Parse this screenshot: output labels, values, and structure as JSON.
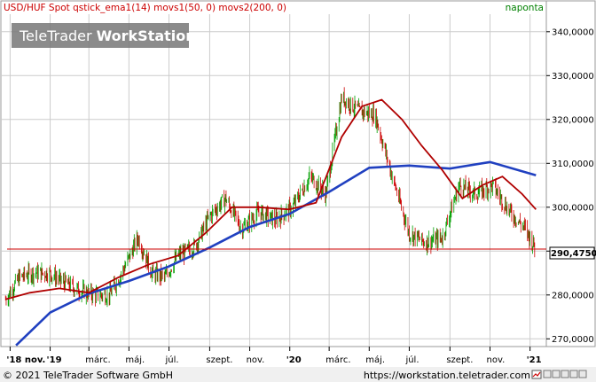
{
  "legend": {
    "series_text": "USD/HUF Spot qstick_ema1(14) movs1(50, 0) movs2(200, 0)",
    "right_text": "naponta"
  },
  "watermark": {
    "light": "TeleTrader",
    "bold": "WorkStation"
  },
  "footer": {
    "copyright": "© 2021 TeleTrader Software GmbH",
    "url": "https://workstation.teletrader.com"
  },
  "current_label": "290,4750",
  "colors": {
    "up_candle": "#00a000",
    "down_candle": "#cc0000",
    "ma50": "#b00000",
    "ma200": "#2040c0",
    "grid": "#cccccc",
    "hline": "#cc0000"
  },
  "icons": [
    "chart-settings-icon",
    "window-controls-icon"
  ],
  "chart_data": {
    "type": "line",
    "ylim": [
      268,
      344
    ],
    "grid": "on",
    "y_ticks": [
      "270,0000",
      "280,0000",
      "290,0000",
      "300,0000",
      "310,0000",
      "320,0000",
      "330,0000",
      "340,0000"
    ],
    "x_ticks": [
      "'18 nov.",
      "'19",
      "márc.",
      "máj.",
      "júl.",
      "szept.",
      "nov.",
      "'20",
      "márc.",
      "máj.",
      "júl.",
      "szept.",
      "nov.",
      "'21"
    ],
    "current_value": 290.475,
    "series": [
      {
        "name": "USD/HUF Spot",
        "kind": "candlestick",
        "x": [
          "2018-10-25",
          "2018-11-15",
          "2018-12-05",
          "2018-12-31",
          "2019-01-20",
          "2019-02-15",
          "2019-03-10",
          "2019-04-01",
          "2019-04-20",
          "2019-05-15",
          "2019-06-05",
          "2019-06-25",
          "2019-07-15",
          "2019-08-10",
          "2019-09-01",
          "2019-09-25",
          "2019-10-20",
          "2019-11-15",
          "2019-12-10",
          "2020-01-05",
          "2020-02-01",
          "2020-02-25",
          "2020-03-20",
          "2020-04-15",
          "2020-05-10",
          "2020-06-05",
          "2020-07-01",
          "2020-07-25",
          "2020-08-20",
          "2020-09-15",
          "2020-10-10",
          "2020-11-05",
          "2020-12-01",
          "2020-12-25",
          "2021-01-10"
        ],
        "close": [
          279,
          284,
          285,
          285,
          283,
          281,
          280,
          280,
          285,
          293,
          285,
          284,
          289,
          291,
          298,
          302,
          295,
          299,
          297,
          300,
          307,
          303,
          325,
          322,
          321,
          307,
          294,
          292,
          293,
          305,
          303,
          305,
          299,
          295,
          290.475
        ]
      },
      {
        "name": "movs1(50, 0)",
        "x": [
          "2018-10-25",
          "2018-12-01",
          "2019-01-15",
          "2019-03-01",
          "2019-04-15",
          "2019-06-01",
          "2019-07-15",
          "2019-08-25",
          "2019-10-05",
          "2019-11-15",
          "2019-12-31",
          "2020-02-10",
          "2020-03-20",
          "2020-04-20",
          "2020-05-20",
          "2020-06-20",
          "2020-07-20",
          "2020-08-20",
          "2020-09-20",
          "2020-10-20",
          "2020-11-20",
          "2020-12-20",
          "2021-01-10"
        ],
        "values": [
          279,
          280.5,
          281.5,
          280.5,
          284,
          287,
          289,
          294,
          300,
          300,
          299.5,
          301,
          316,
          323,
          324.5,
          320,
          314,
          308.5,
          302,
          305,
          307,
          303,
          299.5
        ]
      },
      {
        "name": "movs2(200, 0)",
        "x": [
          "2018-11-10",
          "2019-01-01",
          "2019-03-01",
          "2019-05-01",
          "2019-07-01",
          "2019-09-01",
          "2019-11-01",
          "2020-01-01",
          "2020-03-01",
          "2020-05-01",
          "2020-07-01",
          "2020-09-01",
          "2020-11-01",
          "2021-01-10"
        ],
        "values": [
          268.5,
          276,
          280.3,
          283.2,
          286.5,
          290.8,
          295.5,
          298.5,
          303.5,
          309,
          309.5,
          308.8,
          310.3,
          307.3
        ]
      }
    ]
  }
}
